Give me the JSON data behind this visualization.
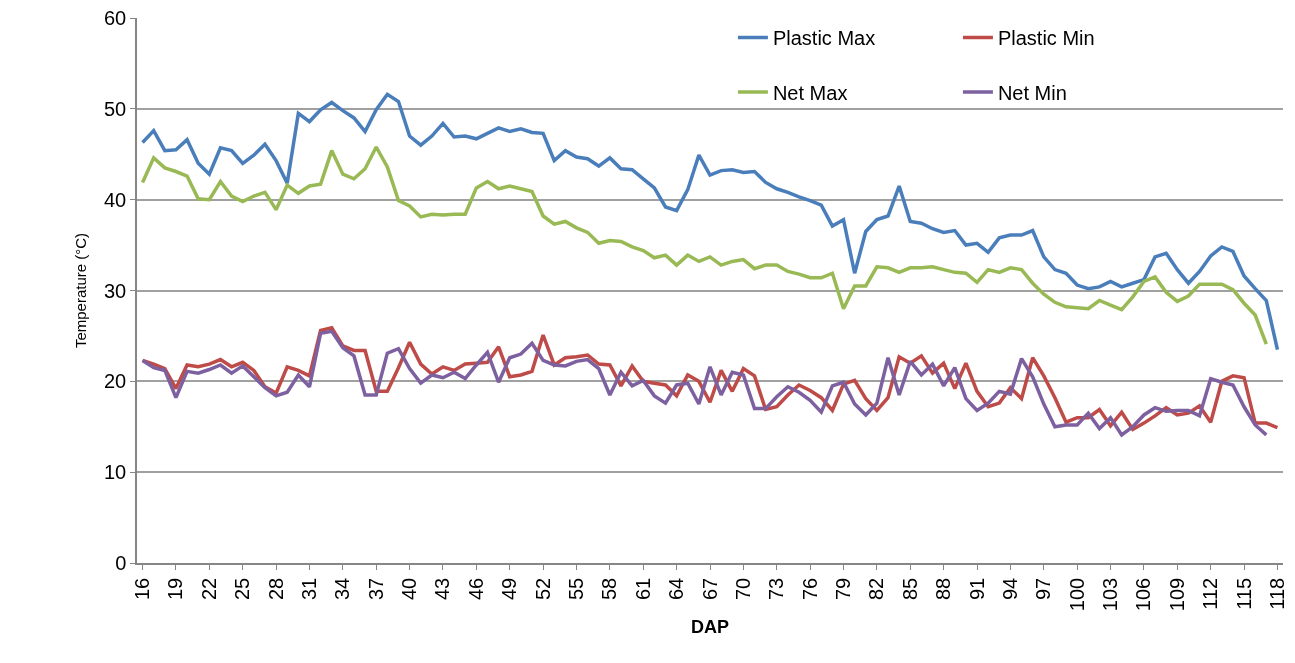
{
  "chart_data": {
    "type": "line",
    "xlabel": "DAP",
    "ylabel": "Temperature (°C)",
    "x": [
      16,
      17,
      18,
      19,
      20,
      21,
      22,
      23,
      24,
      25,
      26,
      27,
      28,
      29,
      30,
      31,
      32,
      33,
      34,
      35,
      36,
      37,
      38,
      39,
      40,
      41,
      42,
      43,
      44,
      45,
      46,
      47,
      48,
      49,
      50,
      51,
      52,
      53,
      54,
      55,
      56,
      57,
      58,
      59,
      60,
      61,
      62,
      63,
      64,
      65,
      66,
      67,
      68,
      69,
      70,
      71,
      72,
      73,
      74,
      75,
      76,
      77,
      78,
      79,
      80,
      81,
      82,
      83,
      84,
      85,
      86,
      87,
      88,
      89,
      90,
      91,
      92,
      93,
      94,
      95,
      96,
      97,
      98,
      99,
      100,
      101,
      102,
      103,
      104,
      105,
      106,
      107,
      108,
      109,
      110,
      111,
      112,
      113,
      114,
      115,
      116,
      117,
      118
    ],
    "xlim": [
      15.5,
      118.5
    ],
    "xticks": [
      16,
      19,
      22,
      25,
      28,
      31,
      34,
      37,
      40,
      43,
      46,
      49,
      52,
      55,
      58,
      61,
      64,
      67,
      70,
      73,
      76,
      79,
      82,
      85,
      88,
      91,
      94,
      97,
      100,
      103,
      106,
      109,
      112,
      115,
      118
    ],
    "ylim": [
      0,
      60
    ],
    "yticks": [
      0,
      10,
      20,
      30,
      40,
      50,
      60
    ],
    "grid": "y",
    "legend": "top right",
    "marker": "none",
    "line_style": "solid",
    "series": [
      {
        "name": "Plastic Max",
        "color": "#4a7ebb",
        "values": [
          46.3,
          47.6,
          45.4,
          45.5,
          46.6,
          44.0,
          42.8,
          45.7,
          45.4,
          44.0,
          44.9,
          46.1,
          44.3,
          41.8,
          49.5,
          48.6,
          49.9,
          50.7,
          49.8,
          49.0,
          47.5,
          49.9,
          51.6,
          50.8,
          47.0,
          46.0,
          47.0,
          48.4,
          46.9,
          47.0,
          46.7,
          47.3,
          47.9,
          47.5,
          47.8,
          47.4,
          47.3,
          44.3,
          45.4,
          44.7,
          44.5,
          43.7,
          44.6,
          43.4,
          43.3,
          42.3,
          41.3,
          39.2,
          38.8,
          41.1,
          44.9,
          42.7,
          43.2,
          43.3,
          43.0,
          43.1,
          41.9,
          41.2,
          40.8,
          40.3,
          39.9,
          39.4,
          37.1,
          37.8,
          31.9,
          36.5,
          37.8,
          38.2,
          41.5,
          37.6,
          37.4,
          36.8,
          36.4,
          36.6,
          35.0,
          35.2,
          34.2,
          35.8,
          36.1,
          36.1,
          36.6,
          33.7,
          32.3,
          31.9,
          30.6,
          30.2,
          30.4,
          31.0,
          30.4,
          30.8,
          31.2,
          33.7,
          34.1,
          32.3,
          30.8,
          32.1,
          33.8,
          34.8,
          34.3,
          31.6,
          30.2,
          28.9,
          23.5
        ]
      },
      {
        "name": "Plastic Min",
        "color": "#be4b48",
        "values": [
          22.3,
          21.9,
          21.4,
          19.2,
          21.8,
          21.6,
          21.9,
          22.4,
          21.6,
          22.1,
          21.2,
          19.4,
          18.7,
          21.6,
          21.2,
          20.6,
          25.6,
          25.9,
          23.9,
          23.4,
          23.4,
          18.9,
          18.9,
          21.5,
          24.3,
          21.9,
          20.8,
          21.6,
          21.2,
          21.9,
          22.0,
          22.1,
          23.8,
          20.5,
          20.7,
          21.1,
          25.1,
          21.8,
          22.6,
          22.7,
          22.9,
          21.9,
          21.8,
          19.5,
          21.7,
          20.0,
          19.8,
          19.6,
          18.4,
          20.7,
          20.0,
          17.7,
          21.2,
          18.9,
          21.4,
          20.6,
          16.9,
          17.2,
          18.5,
          19.6,
          19.0,
          18.2,
          16.8,
          19.7,
          20.1,
          18.1,
          16.8,
          18.2,
          22.7,
          22.0,
          22.8,
          20.9,
          22.0,
          19.2,
          22.0,
          18.9,
          17.2,
          17.6,
          19.3,
          18.1,
          22.6,
          20.6,
          18.2,
          15.5,
          16.0,
          16.0,
          16.9,
          15.1,
          16.6,
          14.7,
          15.4,
          16.2,
          17.1,
          16.3,
          16.5,
          17.3,
          15.5,
          20.0,
          20.6,
          20.4,
          15.4,
          15.4,
          14.9
        ]
      },
      {
        "name": "Net Max",
        "color": "#98b954",
        "values": [
          41.9,
          44.6,
          43.5,
          43.1,
          42.6,
          40.1,
          40.0,
          42.0,
          40.4,
          39.8,
          40.4,
          40.8,
          38.9,
          41.6,
          40.7,
          41.5,
          41.7,
          45.4,
          42.8,
          42.3,
          43.4,
          45.8,
          43.6,
          39.9,
          39.3,
          38.1,
          38.4,
          38.3,
          38.4,
          38.4,
          41.3,
          42.0,
          41.2,
          41.5,
          41.2,
          40.9,
          38.2,
          37.3,
          37.6,
          36.9,
          36.4,
          35.2,
          35.5,
          35.4,
          34.8,
          34.4,
          33.6,
          33.9,
          32.8,
          33.9,
          33.2,
          33.7,
          32.8,
          33.2,
          33.4,
          32.4,
          32.8,
          32.8,
          32.1,
          31.8,
          31.4,
          31.4,
          31.9,
          28.0,
          30.5,
          30.5,
          32.6,
          32.5,
          32.0,
          32.5,
          32.5,
          32.6,
          32.3,
          32.0,
          31.9,
          30.9,
          32.3,
          32.0,
          32.5,
          32.3,
          30.8,
          29.6,
          28.7,
          28.2,
          28.1,
          28.0,
          28.9,
          28.4,
          27.9,
          29.3,
          31.0,
          31.5,
          29.8,
          28.8,
          29.4,
          30.7,
          30.7,
          30.7,
          30.1,
          28.6,
          27.3,
          24.1,
          null
        ]
      },
      {
        "name": "Net Min",
        "color": "#7d60a0",
        "values": [
          22.3,
          21.5,
          21.2,
          18.2,
          21.1,
          20.9,
          21.3,
          21.8,
          20.9,
          21.7,
          20.5,
          19.3,
          18.4,
          18.8,
          20.7,
          19.4,
          25.3,
          25.5,
          23.7,
          22.8,
          18.5,
          18.5,
          23.1,
          23.6,
          21.4,
          19.8,
          20.7,
          20.4,
          21.0,
          20.3,
          21.8,
          23.2,
          19.9,
          22.6,
          23.0,
          24.2,
          22.3,
          21.8,
          21.7,
          22.2,
          22.4,
          21.4,
          18.5,
          21.0,
          19.5,
          20.1,
          18.4,
          17.6,
          19.6,
          19.8,
          17.5,
          21.6,
          18.5,
          21.0,
          20.7,
          17.0,
          17.0,
          18.3,
          19.4,
          18.8,
          17.9,
          16.6,
          19.5,
          19.9,
          17.5,
          16.3,
          17.6,
          22.6,
          18.5,
          22.2,
          20.7,
          21.9,
          19.5,
          21.5,
          18.1,
          16.8,
          17.6,
          18.9,
          18.6,
          22.5,
          20.5,
          17.5,
          15.0,
          15.2,
          15.2,
          16.5,
          14.8,
          16.0,
          14.1,
          15.0,
          16.3,
          17.1,
          16.7,
          16.8,
          16.8,
          16.2,
          20.3,
          19.9,
          19.6,
          17.2,
          15.2,
          14.1,
          null
        ]
      }
    ]
  }
}
